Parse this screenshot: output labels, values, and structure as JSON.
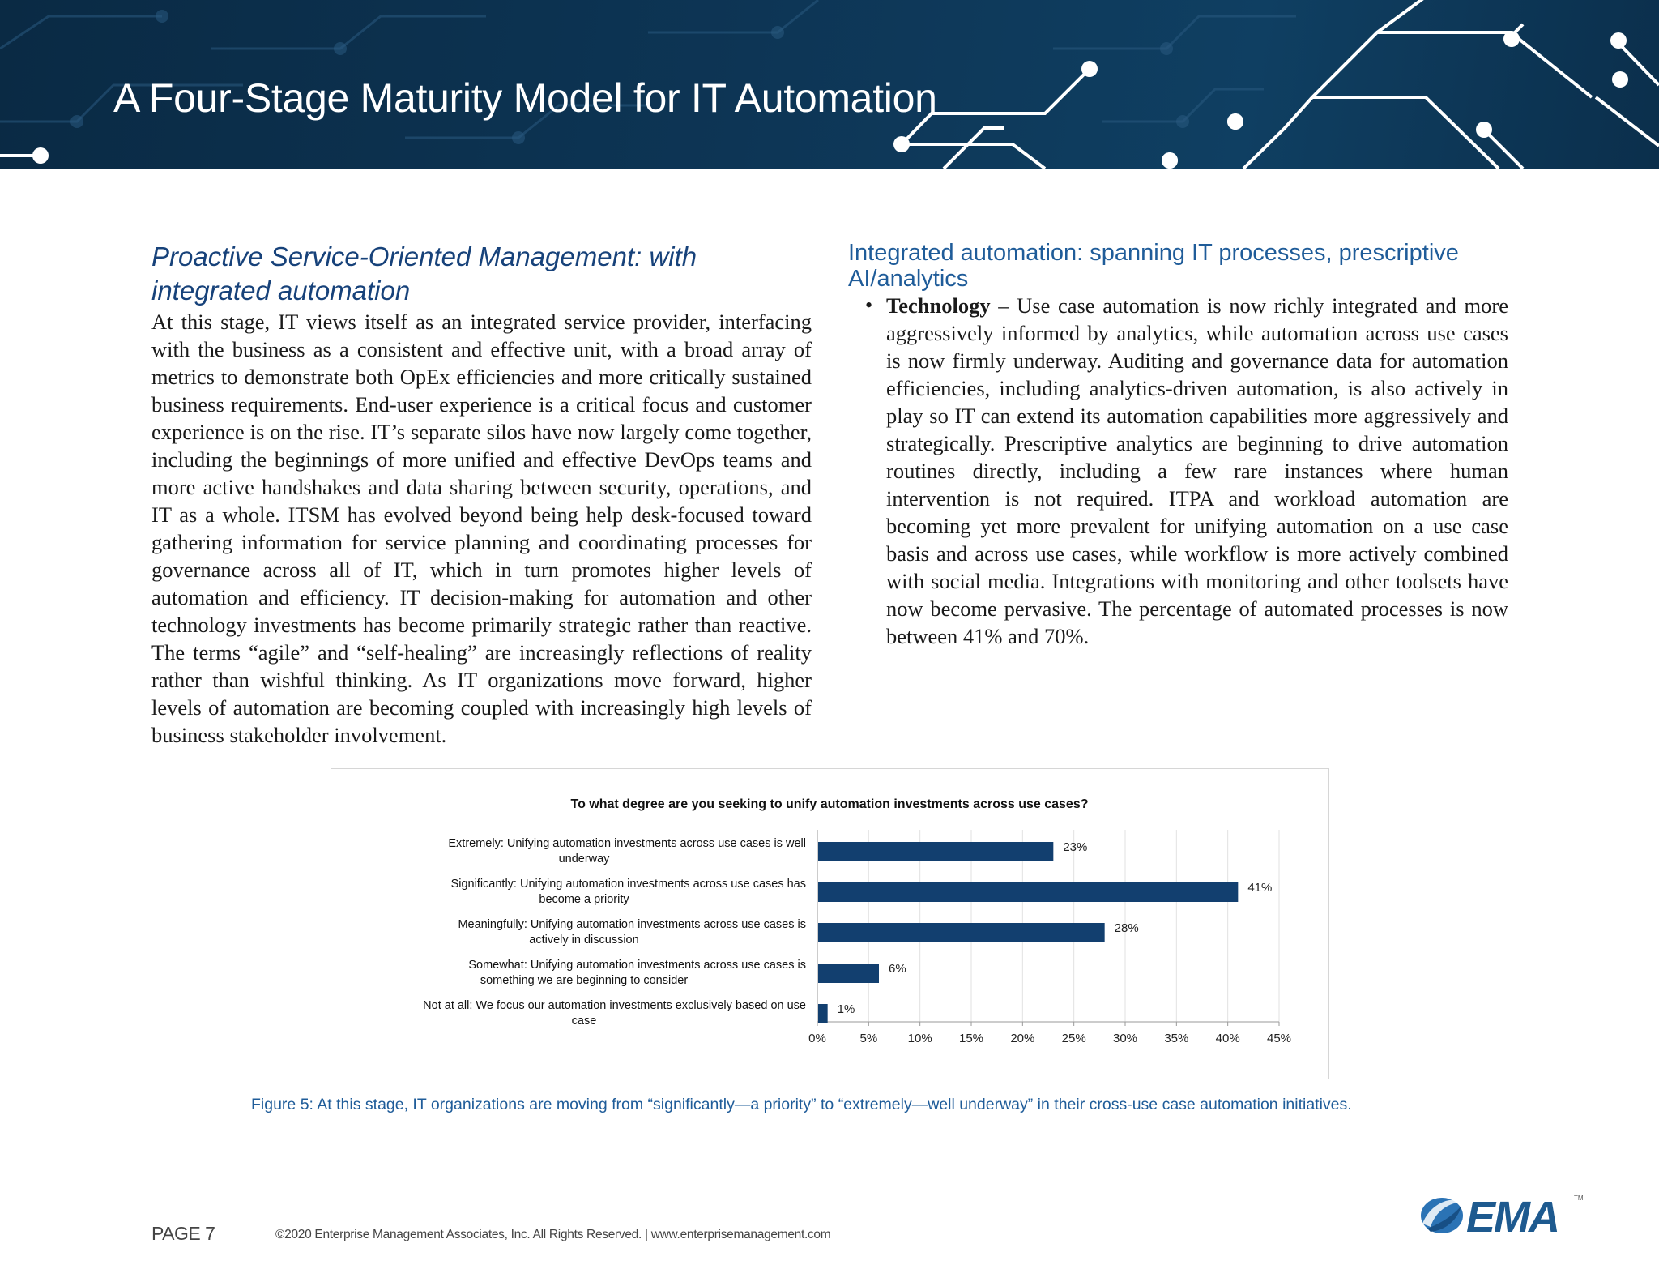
{
  "header": {
    "title": "A Four-Stage Maturity Model for IT Automation"
  },
  "left_column": {
    "heading": "Proactive Service-Oriented Management: with integrated automation",
    "body": "At this stage, IT views itself as an integrated service provider, interfacing with the business as a consistent and effective unit, with a broad array of metrics to demonstrate both OpEx efficiencies and more critically sustained business requirements. End-user experience is a critical focus and customer experience is on the rise. IT’s separate silos have now largely come together, including the beginnings of more unified and effective DevOps teams and more active handshakes and data sharing between security, operations, and IT as a whole. ITSM has evolved beyond being help desk-focused toward gathering information for service planning and coordinating processes for governance across all of IT, which in turn promotes higher levels of automation and efficiency. IT decision-making for automation and other technology investments has become primarily strategic rather than reactive. The terms “agile” and “self-healing” are increasingly reflections of reality rather than wishful thinking. As IT organizations move forward, higher levels of automation are becoming coupled with increasingly high levels of business stakeholder involvement."
  },
  "right_column": {
    "heading": "Integrated automation: spanning IT processes, prescriptive AI/analytics",
    "bullet_term": "Technology",
    "bullet_text": " – Use case automation is now richly integrated and more aggressively informed by analytics, while automation across use cases is now firmly underway. Auditing and governance data for automation efficiencies, including analytics-driven automation, is also actively in play so IT can extend its automation capabilities more aggressively and strategically. Prescriptive analytics are beginning to drive automation routines directly, including a few rare instances where human intervention is not required. ITPA and workload automation are becoming yet more prevalent for unifying automation on a use case basis and across use cases, while workflow is more actively combined with social media. Integrations with monitoring and other toolsets have now become pervasive. The percentage of automated processes is now between 41% and 70%."
  },
  "chart_data": {
    "type": "bar",
    "orientation": "horizontal",
    "title": "To what degree are you seeking to unify automation investments across use cases?",
    "categories": [
      [
        "Extremely: Unifying automation investments across use cases is well",
        "underway"
      ],
      [
        "Significantly: Unifying automation investments across use cases has",
        "become a priority"
      ],
      [
        "Meaningfully: Unifying automation investments across use cases is",
        "actively in discussion"
      ],
      [
        "Somewhat: Unifying automation investments across use cases is",
        "something we are beginning to consider"
      ],
      [
        "Not at all: We focus our automation investments exclusively based on use",
        "case"
      ]
    ],
    "values": [
      23,
      41,
      28,
      6,
      1
    ],
    "data_labels": [
      "23%",
      "41%",
      "28%",
      "6%",
      "1%"
    ],
    "xlim": [
      0,
      45
    ],
    "x_ticks": [
      "0%",
      "5%",
      "10%",
      "15%",
      "20%",
      "25%",
      "30%",
      "35%",
      "40%",
      "45%"
    ],
    "grid": true,
    "bar_color": "#123f6f"
  },
  "caption": "Figure 5: At this stage, IT organizations are moving from “significantly—a priority” to “extremely—well underway” in their cross-use case automation initiatives.",
  "footer": {
    "page": "PAGE 7",
    "copyright": "©2020 Enterprise Management Associates, Inc. All Rights Reserved. | www.enterprisemanagement.com",
    "logo_text": "EMA",
    "logo_tm": "TM"
  }
}
